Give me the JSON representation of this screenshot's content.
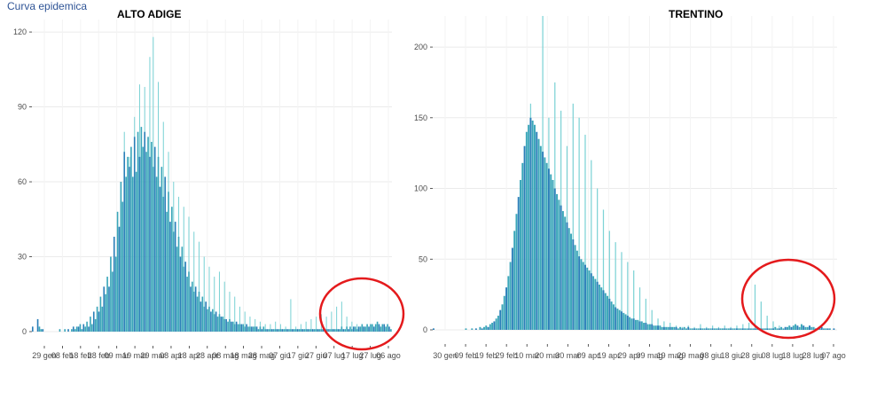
{
  "page_title": "Curva epidemica",
  "colors": {
    "bar_dark": "#2b7fb8",
    "bar_mid": "#3aa6b9",
    "bar_light": "#7fd3d6",
    "grid": "#ebebeb",
    "highlight": "#e41a1c"
  },
  "chart_data": [
    {
      "type": "bar",
      "title": "ALTO ADIGE",
      "xlabel": "",
      "ylabel": "",
      "ylim": [
        0,
        125
      ],
      "y_ticks": [
        0,
        30,
        60,
        90,
        120
      ],
      "y_tick_labels": [
        "0",
        "30",
        "60",
        "90",
        "120"
      ],
      "x_tick_labels": [
        "29 gen",
        "08 feb",
        "18 feb",
        "28 feb",
        "09 mar",
        "19 mar",
        "29 mar",
        "08 apr",
        "18 apr",
        "28 apr",
        "08 mag",
        "18 mag",
        "28 mag",
        "07 giu",
        "17 giu",
        "27 giu",
        "07 lug",
        "17 lug",
        "27 lug",
        "06 ago"
      ],
      "grid": true,
      "series": [
        {
          "values": [
            2,
            0,
            0,
            5,
            2,
            1,
            1,
            0,
            0,
            0,
            0,
            0,
            0,
            0,
            0,
            0,
            1,
            0,
            0,
            1,
            0,
            1,
            0,
            1,
            2,
            1,
            2,
            2,
            3,
            1,
            3,
            2,
            4,
            2,
            6,
            3,
            8,
            5,
            10,
            8,
            14,
            10,
            18,
            15,
            22,
            18,
            30,
            24,
            38,
            30,
            48,
            42,
            60,
            52,
            72,
            62,
            70,
            66,
            74,
            62,
            78,
            64,
            80,
            70,
            82,
            74,
            80,
            72,
            78,
            70,
            76,
            66,
            74,
            62,
            70,
            58,
            66,
            54,
            62,
            48,
            56,
            44,
            50,
            40,
            44,
            34,
            38,
            30,
            34,
            26,
            28,
            22,
            24,
            18,
            20,
            16,
            18,
            14,
            16,
            12,
            14,
            10,
            12,
            9,
            10,
            8,
            9,
            7,
            8,
            6,
            7,
            6,
            6,
            5,
            5,
            4,
            5,
            4,
            4,
            3,
            4,
            3,
            3,
            3,
            3,
            2,
            3,
            2,
            2,
            2,
            2,
            2,
            2,
            1,
            2,
            1,
            2,
            1,
            1,
            1,
            1,
            1,
            1,
            1,
            1,
            1,
            1,
            1,
            1,
            1,
            1,
            1,
            1,
            1,
            1,
            1,
            1,
            1,
            1,
            1,
            1,
            1,
            1,
            1,
            1,
            1,
            1,
            1,
            1,
            1,
            1,
            1,
            1,
            1,
            1,
            1,
            1,
            1,
            1,
            1,
            1,
            1,
            2,
            1,
            1,
            2,
            1,
            2,
            1,
            2,
            2,
            1,
            2,
            2,
            3,
            2,
            2,
            3,
            2,
            3,
            3,
            2,
            3,
            4,
            3,
            2,
            3,
            3,
            2,
            3,
            2,
            1
          ]
        },
        {
          "values": [
            0,
            0,
            0,
            0,
            0,
            0,
            0,
            0,
            0,
            0,
            0,
            0,
            0,
            0,
            0,
            0,
            0,
            0,
            0,
            0,
            0,
            0,
            0,
            0,
            0,
            0,
            0,
            0,
            0,
            0,
            0,
            0,
            0,
            0,
            0,
            0,
            0,
            0,
            0,
            0,
            0,
            0,
            0,
            0,
            0,
            0,
            0,
            0,
            0,
            0,
            0,
            0,
            0,
            0,
            80,
            0,
            0,
            70,
            0,
            0,
            86,
            0,
            0,
            99,
            0,
            0,
            98,
            0,
            0,
            110,
            0,
            118,
            0,
            0,
            100,
            0,
            0,
            84,
            0,
            0,
            72,
            0,
            0,
            60,
            0,
            0,
            54,
            0,
            0,
            50,
            0,
            0,
            46,
            0,
            0,
            40,
            0,
            0,
            36,
            0,
            0,
            30,
            0,
            0,
            26,
            0,
            0,
            22,
            0,
            0,
            24,
            0,
            0,
            20,
            0,
            0,
            16,
            0,
            0,
            14,
            0,
            0,
            10,
            0,
            0,
            8,
            0,
            0,
            6,
            0,
            0,
            5,
            0,
            0,
            4,
            0,
            0,
            3,
            0,
            0,
            3,
            0,
            0,
            4,
            0,
            0,
            3,
            0,
            0,
            2,
            0,
            0,
            13,
            0,
            0,
            2,
            0,
            0,
            3,
            0,
            0,
            4,
            0,
            0,
            5,
            0,
            0,
            6,
            0,
            0,
            7,
            0,
            0,
            6,
            0,
            0,
            8,
            0,
            0,
            10,
            0,
            0,
            12,
            0,
            0,
            6,
            0,
            0,
            4,
            0,
            0,
            3,
            0,
            0,
            2,
            0,
            0,
            1,
            0,
            0,
            0,
            0,
            0
          ]
        }
      ]
    },
    {
      "type": "bar",
      "title": "TRENTINO",
      "xlabel": "",
      "ylabel": "",
      "ylim": [
        0,
        222
      ],
      "y_ticks": [
        0,
        50,
        100,
        150,
        200
      ],
      "y_tick_labels": [
        "0",
        "50",
        "100",
        "150",
        "200"
      ],
      "x_tick_labels": [
        "30 gen",
        "09 feb",
        "19 feb",
        "29 feb",
        "10 mar",
        "20 mar",
        "30 mar",
        "09 apr",
        "19 apr",
        "29 apr",
        "09 mag",
        "19 mag",
        "29 mag",
        "08 giu",
        "18 giu",
        "28 giu",
        "08 lug",
        "18 lug",
        "28 lug",
        "07 ago"
      ],
      "grid": true,
      "series": [
        {
          "values": [
            1,
            0,
            0,
            0,
            0,
            0,
            0,
            0,
            0,
            0,
            0,
            0,
            0,
            0,
            0,
            0,
            1,
            0,
            0,
            1,
            0,
            1,
            0,
            2,
            1,
            2,
            3,
            2,
            4,
            5,
            6,
            8,
            10,
            14,
            18,
            24,
            30,
            38,
            48,
            58,
            70,
            82,
            94,
            106,
            118,
            130,
            140,
            145,
            150,
            148,
            145,
            140,
            135,
            130,
            126,
            122,
            118,
            114,
            110,
            106,
            100,
            96,
            92,
            88,
            84,
            80,
            76,
            72,
            68,
            64,
            60,
            56,
            52,
            50,
            48,
            46,
            44,
            42,
            40,
            38,
            36,
            34,
            32,
            30,
            28,
            26,
            24,
            22,
            20,
            18,
            16,
            15,
            14,
            13,
            12,
            11,
            10,
            9,
            8,
            8,
            7,
            7,
            6,
            6,
            5,
            5,
            4,
            4,
            4,
            3,
            3,
            3,
            3,
            2,
            2,
            2,
            2,
            2,
            2,
            2,
            2,
            1,
            2,
            1,
            2,
            1,
            2,
            1,
            1,
            1,
            1,
            1,
            1,
            1,
            1,
            1,
            1,
            1,
            1,
            1,
            1,
            1,
            1,
            1,
            1,
            1,
            1,
            1,
            1,
            1,
            1,
            1,
            1,
            1,
            1,
            1,
            1,
            1,
            1,
            1,
            1,
            1,
            1,
            1,
            1,
            1,
            1,
            1,
            1,
            2,
            1,
            1,
            2,
            1,
            2,
            2,
            3,
            2,
            3,
            4,
            3,
            2,
            4,
            3,
            2,
            2,
            3,
            2,
            2,
            1,
            1,
            1,
            2,
            1,
            1,
            1,
            1,
            0,
            1,
            0
          ]
        },
        {
          "values": [
            0,
            0,
            0,
            0,
            0,
            0,
            0,
            0,
            0,
            0,
            0,
            0,
            0,
            0,
            0,
            0,
            0,
            0,
            0,
            0,
            0,
            0,
            0,
            0,
            0,
            0,
            0,
            0,
            0,
            0,
            0,
            0,
            0,
            0,
            0,
            0,
            0,
            0,
            0,
            0,
            0,
            0,
            0,
            0,
            0,
            0,
            0,
            0,
            160,
            0,
            0,
            138,
            0,
            0,
            222,
            0,
            0,
            150,
            0,
            0,
            175,
            0,
            0,
            155,
            0,
            0,
            130,
            0,
            0,
            160,
            0,
            0,
            150,
            0,
            0,
            138,
            0,
            0,
            120,
            0,
            0,
            100,
            0,
            0,
            85,
            0,
            0,
            70,
            0,
            0,
            62,
            0,
            0,
            55,
            0,
            0,
            48,
            0,
            0,
            42,
            0,
            0,
            30,
            0,
            0,
            22,
            0,
            0,
            14,
            0,
            0,
            8,
            0,
            0,
            6,
            0,
            0,
            5,
            0,
            0,
            3,
            0,
            0,
            2,
            0,
            0,
            3,
            0,
            0,
            2,
            0,
            0,
            4,
            0,
            0,
            2,
            0,
            0,
            3,
            0,
            0,
            2,
            0,
            0,
            3,
            0,
            0,
            2,
            0,
            0,
            3,
            0,
            0,
            4,
            0,
            0,
            5,
            0,
            0,
            32,
            0,
            0,
            20,
            0,
            0,
            10,
            0,
            0,
            6,
            0,
            0,
            3,
            0,
            0,
            2,
            0,
            0,
            1,
            0
          ]
        }
      ]
    }
  ]
}
